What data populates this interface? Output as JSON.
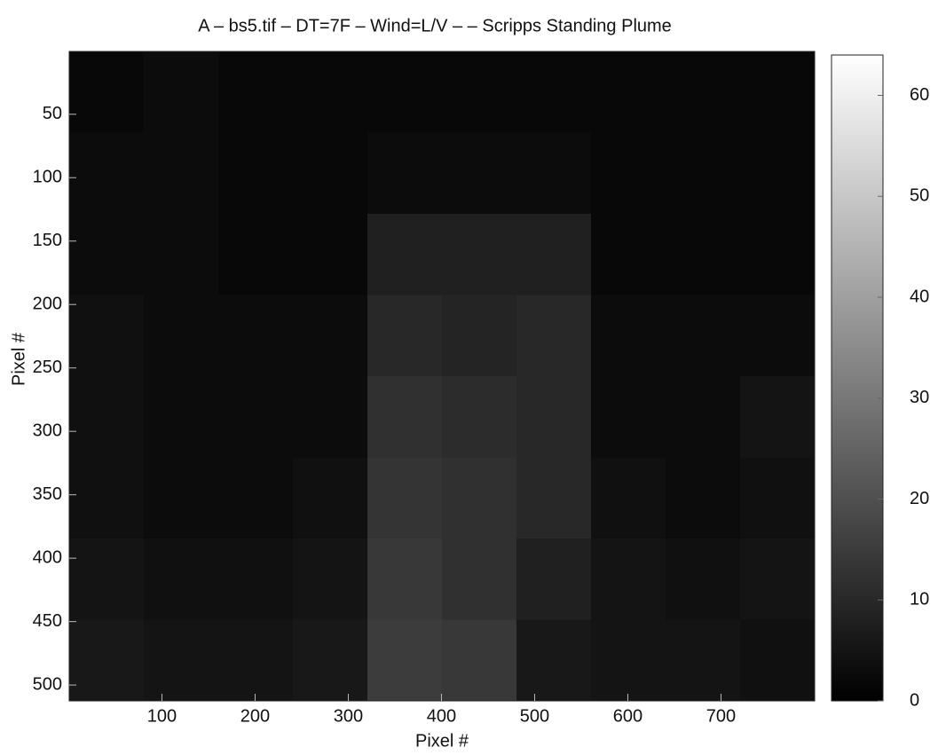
{
  "chart_data": {
    "type": "image",
    "title": "A – bs5.tif – DT=7F –  Wind=L/V –  – Scripps Standing Plume",
    "xlabel": "Pixel #",
    "ylabel": "Pixel #",
    "xlim": [
      0.5,
      800.5
    ],
    "xticks": [
      100,
      200,
      300,
      400,
      500,
      600,
      700
    ],
    "ylim": [
      0.5,
      512.5
    ],
    "yticks": [
      50,
      100,
      150,
      200,
      250,
      300,
      350,
      400,
      450,
      500
    ],
    "yreverse": true,
    "colormap": "gray",
    "clim": [
      0,
      64
    ],
    "cticks": [
      0,
      10,
      20,
      30,
      40,
      50,
      60
    ],
    "z": [
      [
        2,
        3,
        2,
        2,
        2,
        2,
        2,
        2,
        2,
        2
      ],
      [
        3,
        3,
        2,
        2,
        3,
        3,
        3,
        2,
        2,
        2
      ],
      [
        3,
        3,
        2,
        2,
        8,
        8,
        8,
        2,
        2,
        2
      ],
      [
        4,
        3,
        3,
        3,
        10,
        9,
        10,
        3,
        3,
        3
      ],
      [
        4,
        3,
        3,
        3,
        12,
        11,
        10,
        3,
        3,
        5
      ],
      [
        4,
        3,
        3,
        4,
        13,
        12,
        10,
        4,
        3,
        4
      ],
      [
        5,
        4,
        4,
        5,
        14,
        12,
        8,
        5,
        4,
        5
      ],
      [
        6,
        5,
        5,
        6,
        15,
        14,
        6,
        5,
        5,
        4
      ]
    ]
  }
}
